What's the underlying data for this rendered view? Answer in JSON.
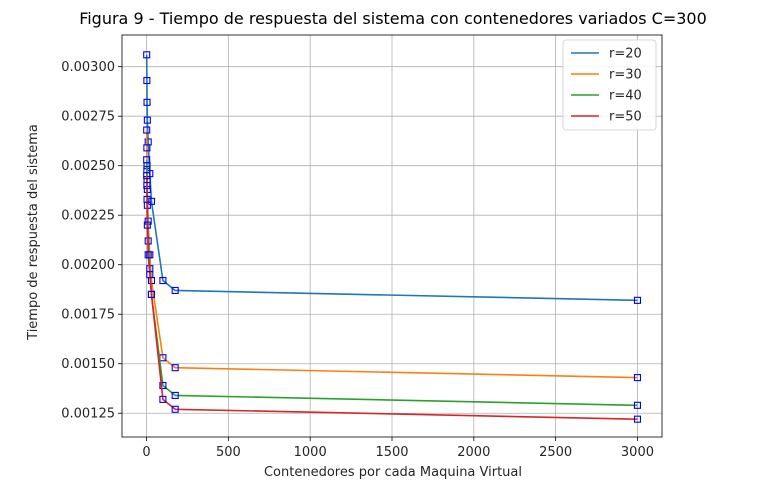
{
  "chart_data": {
    "type": "line",
    "title": "Figura 9 - Tiempo de respuesta del sistema con contenedores variados C=300",
    "xlabel": "Contenedores por cada Maquina Virtual",
    "ylabel": "Tiempo de respuesta del sistema",
    "xlim": [
      -150,
      3150
    ],
    "ylim": [
      0.00113,
      0.00316
    ],
    "xticks": [
      0,
      500,
      1000,
      1500,
      2000,
      2500,
      3000
    ],
    "xtick_labels": [
      "0",
      "500",
      "1000",
      "1500",
      "2000",
      "2500",
      "3000"
    ],
    "yticks": [
      0.00125,
      0.0015,
      0.00175,
      0.002,
      0.00225,
      0.0025,
      0.00275,
      0.003
    ],
    "ytick_labels": [
      "0.00125",
      "0.00150",
      "0.00175",
      "0.00200",
      "0.00225",
      "0.00250",
      "0.00275",
      "0.00300"
    ],
    "grid": true,
    "legend_position": "top-right",
    "marker": "square",
    "marker_color": "#0000ff",
    "series": [
      {
        "name": "r=20",
        "color": "#1f77b4",
        "x": [
          1,
          2,
          3,
          5,
          10,
          20,
          30,
          100,
          175,
          3000
        ],
        "y": [
          0.00306,
          0.00293,
          0.00282,
          0.00273,
          0.00262,
          0.00246,
          0.00232,
          0.00192,
          0.00187,
          0.00182
        ]
      },
      {
        "name": "r=30",
        "color": "#ff7f0e",
        "x": [
          1,
          2,
          3,
          5,
          10,
          20,
          30,
          100,
          175,
          3000
        ],
        "y": [
          0.00268,
          0.00259,
          0.0025,
          0.00238,
          0.00222,
          0.00205,
          0.00192,
          0.00153,
          0.00148,
          0.00143
        ]
      },
      {
        "name": "r=40",
        "color": "#2ca02c",
        "x": [
          1,
          2,
          3,
          5,
          10,
          20,
          30,
          100,
          175,
          3000
        ],
        "y": [
          0.00253,
          0.00248,
          0.00243,
          0.0023,
          0.00212,
          0.00198,
          0.00185,
          0.00139,
          0.00134,
          0.00129
        ]
      },
      {
        "name": "r=50",
        "color": "#d62728",
        "x": [
          1,
          2,
          3,
          5,
          10,
          20,
          30,
          100,
          175,
          3000
        ],
        "y": [
          0.00245,
          0.0024,
          0.00233,
          0.0022,
          0.00205,
          0.00195,
          0.00185,
          0.00132,
          0.00127,
          0.00122
        ]
      }
    ]
  }
}
